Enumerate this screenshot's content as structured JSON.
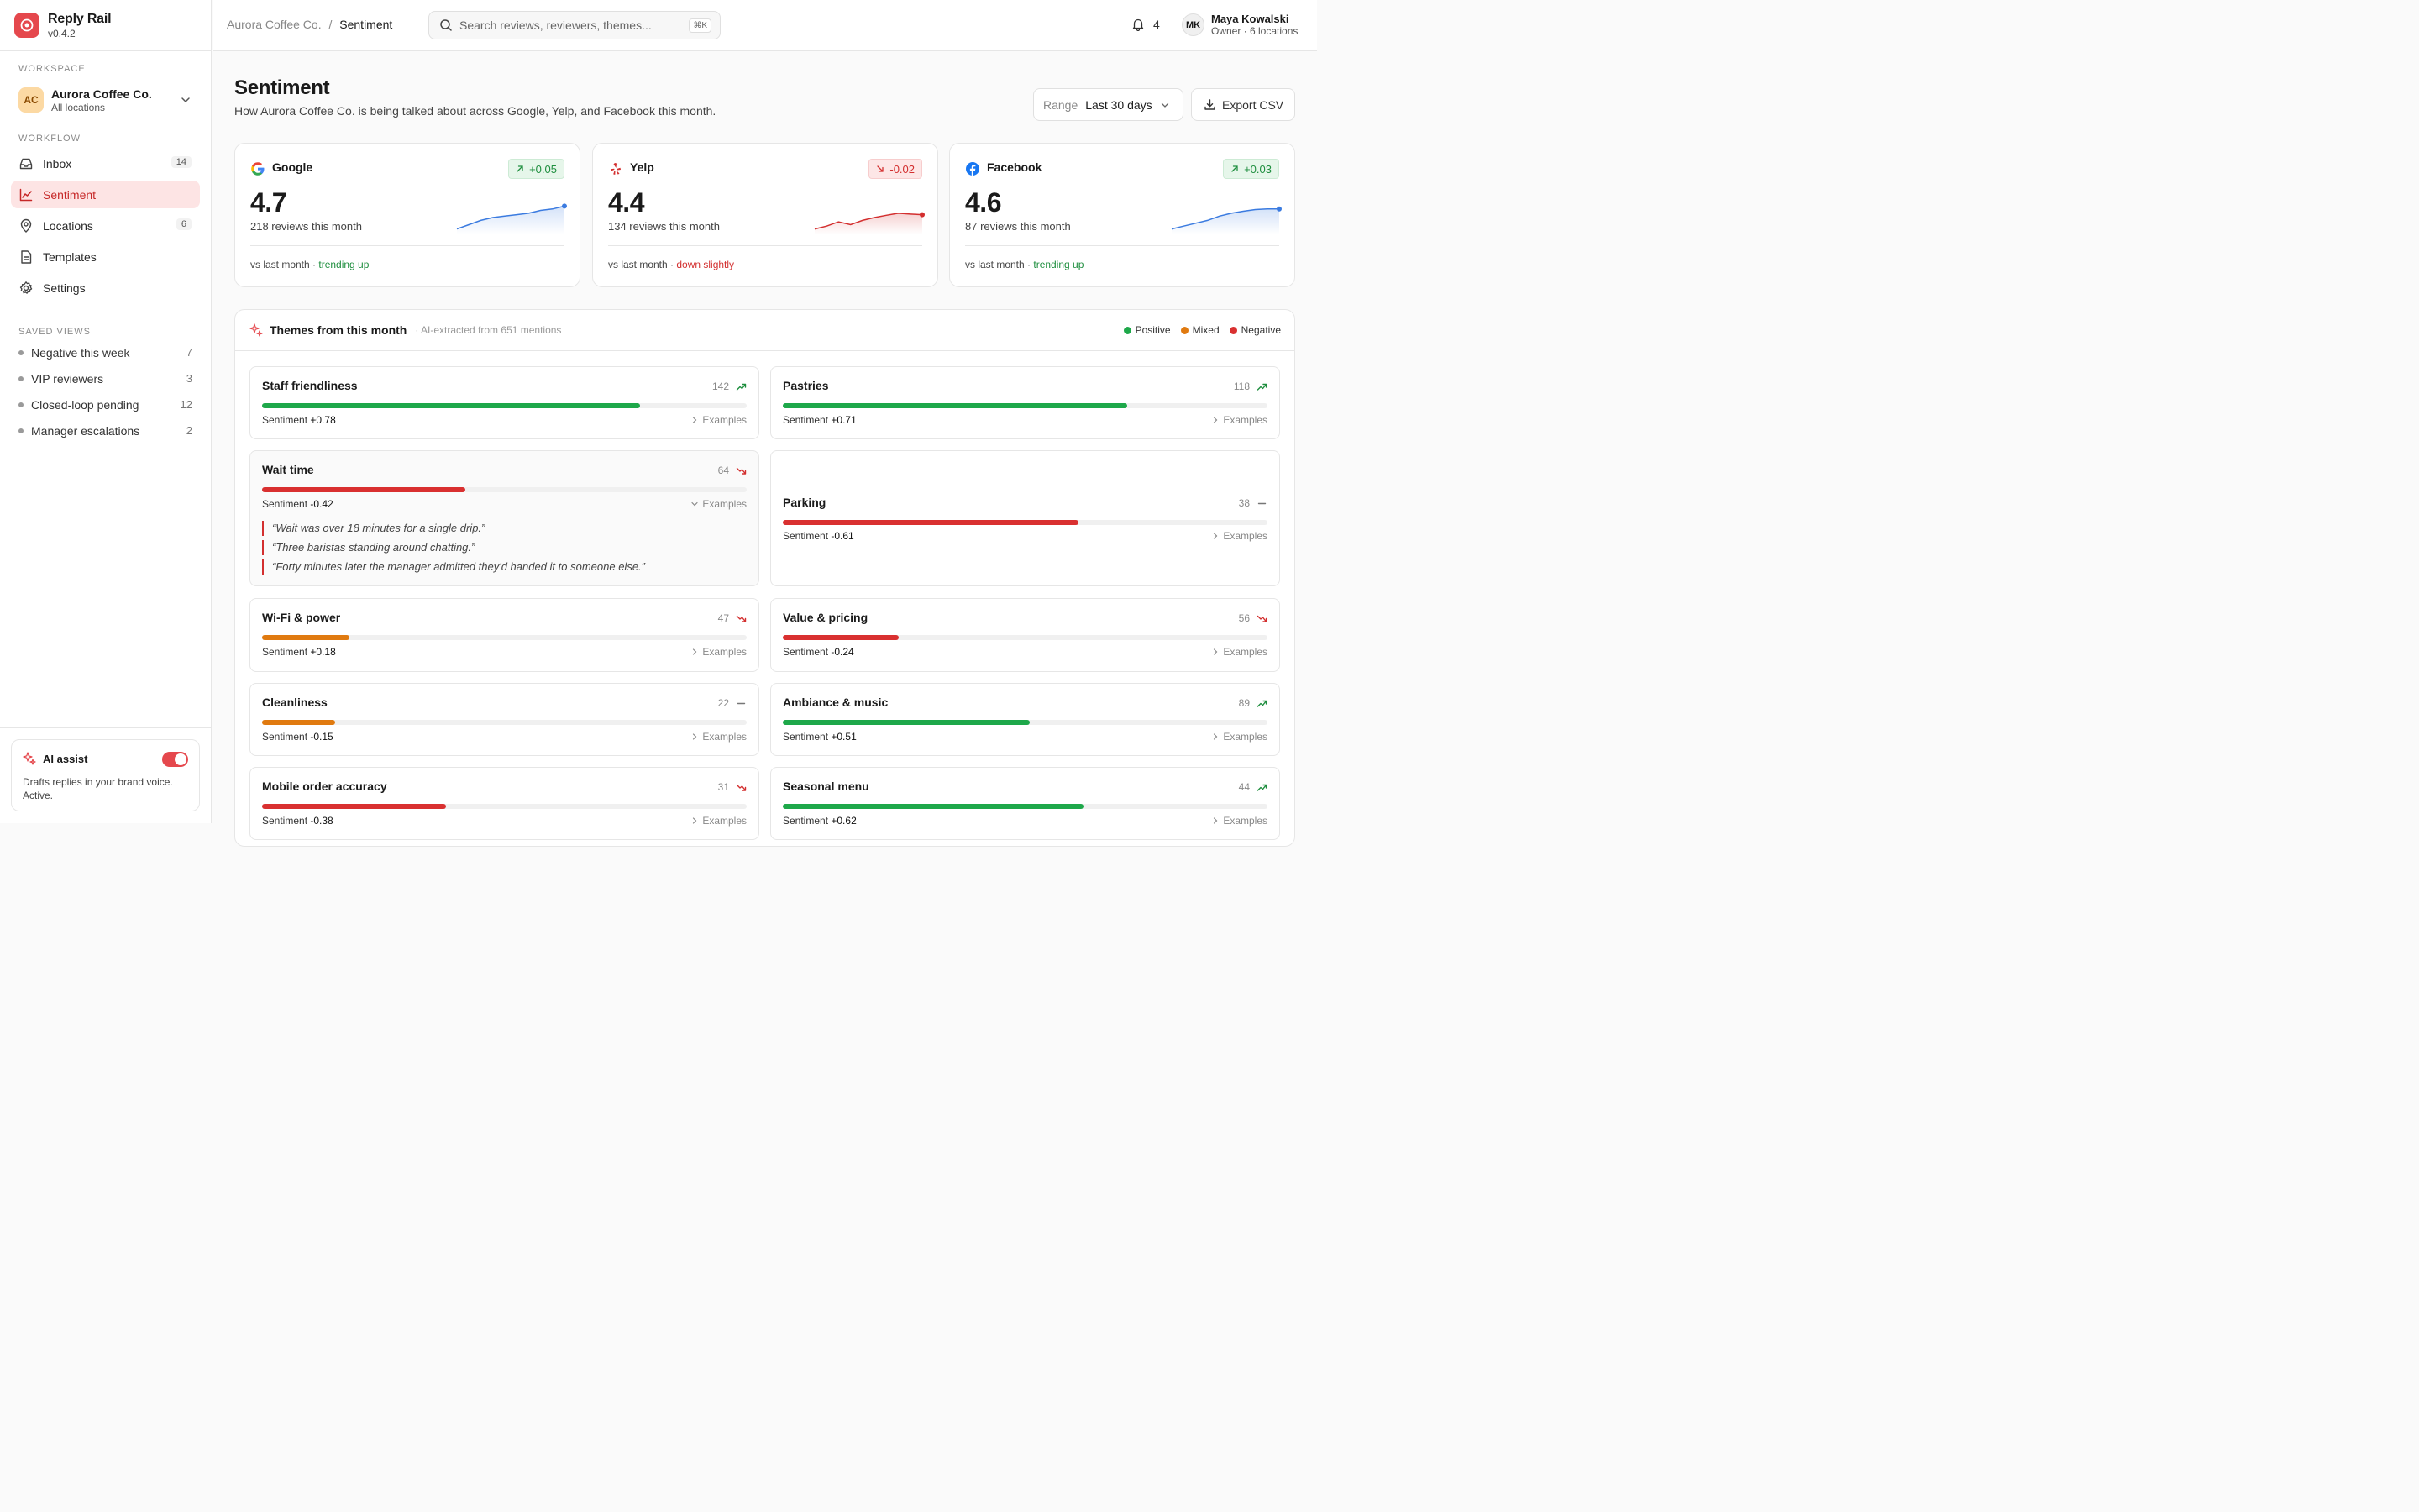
{
  "app": {
    "name": "Reply Rail",
    "version": "v0.4.2"
  },
  "sidebar": {
    "workspace_label": "WORKSPACE",
    "workspace": {
      "initials": "AC",
      "name": "Aurora Coffee Co.",
      "sub": "All locations"
    },
    "workflow_label": "WORKFLOW",
    "nav": [
      {
        "label": "Inbox",
        "badge": "14",
        "icon": "inbox-icon"
      },
      {
        "label": "Sentiment",
        "icon": "chart-line-icon"
      },
      {
        "label": "Locations",
        "badge": "6",
        "icon": "map-pin-icon"
      },
      {
        "label": "Templates",
        "icon": "document-icon"
      },
      {
        "label": "Settings",
        "icon": "gear-icon"
      }
    ],
    "saved_label": "SAVED VIEWS",
    "saved_views": [
      {
        "label": "Negative this week",
        "count": "7"
      },
      {
        "label": "VIP reviewers",
        "count": "3"
      },
      {
        "label": "Closed-loop pending",
        "count": "12"
      },
      {
        "label": "Manager escalations",
        "count": "2"
      }
    ],
    "ai": {
      "title": "AI assist",
      "desc": "Drafts replies in your brand voice. Active.",
      "enabled": true
    }
  },
  "topbar": {
    "breadcrumb": {
      "parent": "Aurora Coffee Co.",
      "sep": "/",
      "current": "Sentiment"
    },
    "search": {
      "placeholder": "Search reviews, reviewers, themes...",
      "shortcut": "⌘K"
    },
    "notifications": "4",
    "user": {
      "initials": "MK",
      "name": "Maya Kowalski",
      "role": "Owner · 6 locations"
    }
  },
  "page": {
    "title": "Sentiment",
    "subtitle": "How Aurora Coffee Co. is being talked about across Google, Yelp, and Facebook this month.",
    "range_label": "Range",
    "range_value": "Last 30 days",
    "export_label": "Export CSV"
  },
  "platforms": [
    {
      "name": "Google",
      "delta": "+0.05",
      "trend": "up",
      "rating": "4.7",
      "reviews": "218 reviews this month",
      "foot": "vs last month · ",
      "trend_text": "trending up",
      "color": "#3b7be0",
      "spark": [
        3.9,
        4.05,
        4.2,
        4.3,
        4.35,
        4.4,
        4.45,
        4.55,
        4.6,
        4.7
      ]
    },
    {
      "name": "Yelp",
      "delta": "-0.02",
      "trend": "down",
      "rating": "4.4",
      "reviews": "134 reviews this month",
      "foot": "vs last month · ",
      "trend_text": "down slightly",
      "color": "#d32f2f",
      "spark": [
        3.9,
        4.0,
        4.15,
        4.05,
        4.2,
        4.3,
        4.38,
        4.45,
        4.42,
        4.4
      ]
    },
    {
      "name": "Facebook",
      "delta": "+0.03",
      "trend": "up",
      "rating": "4.6",
      "reviews": "87 reviews this month",
      "foot": "vs last month · ",
      "trend_text": "trending up",
      "color": "#3b7be0",
      "spark": [
        3.9,
        4.0,
        4.1,
        4.2,
        4.35,
        4.45,
        4.52,
        4.58,
        4.6,
        4.6
      ]
    }
  ],
  "themes": {
    "title": "Themes from this month",
    "subtitle": "· AI-extracted from 651 mentions",
    "legend": [
      {
        "label": "Positive",
        "color": "#1ea84a"
      },
      {
        "label": "Mixed",
        "color": "#e07a10"
      },
      {
        "label": "Negative",
        "color": "#d93030"
      }
    ],
    "examples_label": "Examples",
    "sentiment_label": "Sentiment",
    "items": [
      {
        "name": "Staff friendliness",
        "count": "142",
        "trend": "up",
        "sentiment": "+0.78",
        "pct": 78,
        "tone": "positive"
      },
      {
        "name": "Pastries",
        "count": "118",
        "trend": "up",
        "sentiment": "+0.71",
        "pct": 71,
        "tone": "positive"
      },
      {
        "name": "Wait time",
        "count": "64",
        "trend": "down",
        "sentiment": "-0.42",
        "pct": 42,
        "tone": "negative",
        "quotes": [
          "“Wait was over 18 minutes for a single drip.”",
          "“Three baristas standing around chatting.”",
          "“Forty minutes later the manager admitted they'd handed it to someone else.”"
        ]
      },
      {
        "name": "Parking",
        "count": "38",
        "trend": "flat",
        "sentiment": "-0.61",
        "pct": 61,
        "tone": "negative"
      },
      {
        "name": "Wi-Fi & power",
        "count": "47",
        "trend": "down",
        "sentiment": "+0.18",
        "pct": 18,
        "tone": "mixed"
      },
      {
        "name": "Value & pricing",
        "count": "56",
        "trend": "down",
        "sentiment": "-0.24",
        "pct": 24,
        "tone": "negative"
      },
      {
        "name": "Cleanliness",
        "count": "22",
        "trend": "flat",
        "sentiment": "-0.15",
        "pct": 15,
        "tone": "mixed"
      },
      {
        "name": "Ambiance & music",
        "count": "89",
        "trend": "up",
        "sentiment": "+0.51",
        "pct": 51,
        "tone": "positive"
      },
      {
        "name": "Mobile order accuracy",
        "count": "31",
        "trend": "down",
        "sentiment": "-0.38",
        "pct": 38,
        "tone": "negative"
      },
      {
        "name": "Seasonal menu",
        "count": "44",
        "trend": "up",
        "sentiment": "+0.62",
        "pct": 62,
        "tone": "positive"
      }
    ]
  }
}
